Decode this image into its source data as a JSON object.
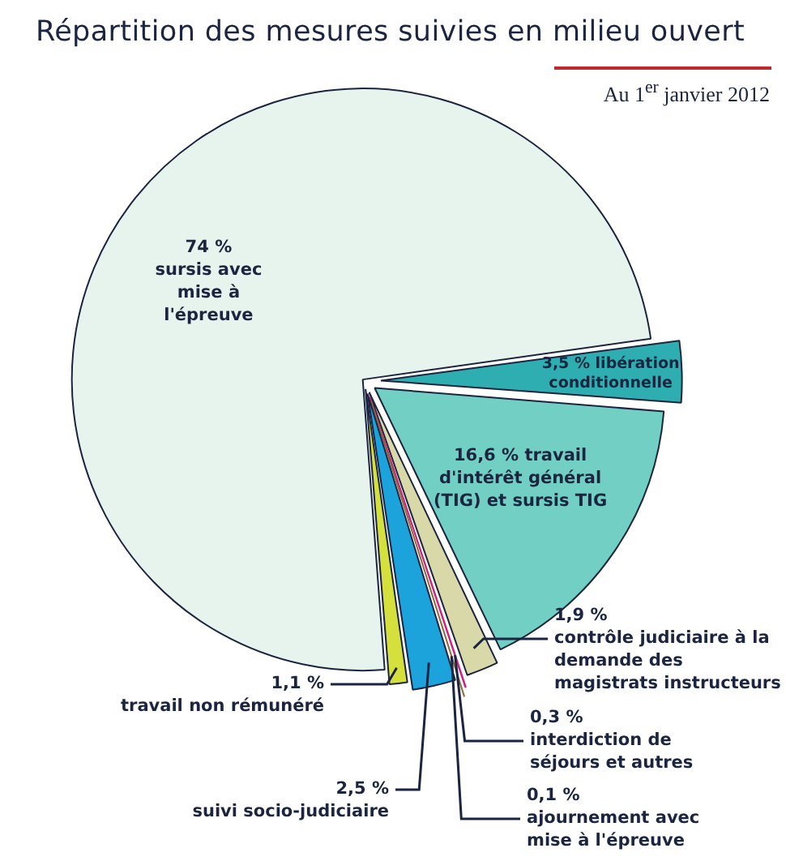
{
  "chart_data": {
    "type": "pie",
    "title": "Répartition des mesures suivies en milieu ouvert",
    "subtitle": "Au 1$^{er}$ janvier 2012",
    "categories": [
      "libération conditionnelle",
      "travail d'intérêt général (TIG) et sursis TIG",
      "contrôle judiciaire à la demande des magistrats instructeurs",
      "interdiction de séjours et autres",
      "ajournement avec mise à l'épreuve",
      "suivi socio-judiciaire",
      "travail non rémunéré",
      "sursis avec mise à l'épreuve"
    ],
    "values": [
      3.5,
      16.6,
      1.9,
      0.3,
      0.1,
      2.5,
      1.1,
      74
    ],
    "value_labels": [
      "3,5 %",
      "16,6 %",
      "1,9 %",
      "0,3 %",
      "0,1 %",
      "2,5 %",
      "1,1 %",
      "74 %"
    ],
    "colors": [
      "#2eaeb0",
      "#72cfc3",
      "#d9d8a9",
      "#d11f80",
      "#8c6a3c",
      "#1ca3dc",
      "#d6e03c",
      "#e7f4ee"
    ],
    "legend": false
  }
}
